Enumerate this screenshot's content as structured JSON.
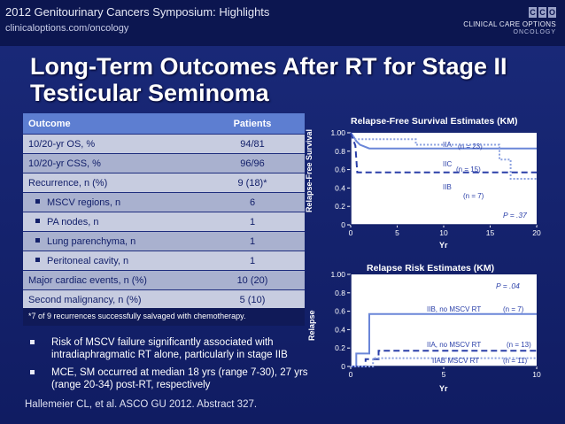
{
  "header": {
    "title": "2012 Genitourinary Cancers Symposium: Highlights",
    "subtitle": "clinicaloptions.com/oncology",
    "logo": {
      "mark": [
        "C",
        "C",
        "O"
      ],
      "main": "CLINICAL CARE OPTIONS",
      "sub": "ONCOLOGY"
    }
  },
  "slide": {
    "title": "Long-Term Outcomes After RT for Stage II Testicular Seminoma"
  },
  "table": {
    "headers": [
      "Outcome",
      "Patients"
    ],
    "rows": [
      {
        "outcome": "10/20-yr OS, %",
        "patients": "94/81"
      },
      {
        "outcome": "10/20-yr CSS, %",
        "patients": "96/96"
      },
      {
        "outcome": "Recurrence, n (%)",
        "patients": "9 (18)*"
      },
      {
        "outcome": "MSCV regions, n",
        "patients": "6"
      },
      {
        "outcome": "PA nodes, n",
        "patients": "1"
      },
      {
        "outcome": "Lung parenchyma, n",
        "patients": "1"
      },
      {
        "outcome": "Peritoneal cavity, n",
        "patients": "1"
      },
      {
        "outcome": "Major cardiac events, n (%)",
        "patients": "10 (20)"
      },
      {
        "outcome": "Second malignancy, n (%)",
        "patients": "5 (10)"
      }
    ],
    "footnote": "*7 of 9 recurrences successfully salvaged with chemotherapy."
  },
  "bullets": [
    "Risk of MSCV failure significantly associated with intradiaphragmatic RT alone, particularly in stage IIB",
    "MCE, SM occurred at median 18 yrs (range 7-30), 27 yrs (range 20-34) post-RT, respectively"
  ],
  "citation": "Hallemeier CL, et al. ASCO GU 2012. Abstract 327.",
  "colors": {
    "background": "#13206a",
    "table_header": "#5d7ed1",
    "row_light": "#c7cce0",
    "row_dark": "#a9b1cf",
    "plot_bg": "#ffffff",
    "curve_solid": "#6a86d8",
    "curve_dashed": "#2a3fa8",
    "curve_dotted": "#8aa0e0"
  },
  "chart_data": [
    {
      "type": "line",
      "title": "Relapse-Free Survival Estimates (KM)",
      "xlabel": "Yr",
      "ylabel": "Relapse-Free Survival",
      "xlim": [
        0,
        20
      ],
      "ylim": [
        0,
        1
      ],
      "xticks": [
        "0",
        "5",
        "10",
        "15",
        "20"
      ],
      "yticks": [
        "0",
        "0.2",
        "0.4",
        "0.6",
        "0.8",
        "1.00"
      ],
      "annotation": "P = .37",
      "series": [
        {
          "name": "IIA",
          "n_label": "(n = 23)",
          "style": "solid",
          "points": [
            [
              0,
              1.0
            ],
            [
              0.3,
              0.96
            ],
            [
              0.6,
              0.91
            ],
            [
              1.0,
              0.87
            ],
            [
              2.0,
              0.83
            ],
            [
              20,
              0.83
            ]
          ]
        },
        {
          "name": "IIC",
          "n_label": "(n = 15)",
          "style": "dotted",
          "points": [
            [
              0,
              1.0
            ],
            [
              0.5,
              0.93
            ],
            [
              7,
              0.93
            ],
            [
              7,
              0.87
            ],
            [
              16,
              0.87
            ],
            [
              16,
              0.71
            ],
            [
              17.2,
              0.71
            ],
            [
              17.2,
              0.5
            ],
            [
              20,
              0.5
            ]
          ]
        },
        {
          "name": "IIB",
          "n_label": "(n = 7)",
          "style": "dashed",
          "points": [
            [
              0,
              1.0
            ],
            [
              0.5,
              0.86
            ],
            [
              0.7,
              0.57
            ],
            [
              17.5,
              0.57
            ],
            [
              20,
              0.57
            ]
          ]
        }
      ]
    },
    {
      "type": "line",
      "title": "Relapse Risk Estimates (KM)",
      "xlabel": "Yr",
      "ylabel": "Relapse",
      "xlim": [
        0,
        10
      ],
      "ylim": [
        0,
        1
      ],
      "xticks": [
        "0",
        "5",
        "10"
      ],
      "yticks": [
        "0",
        "0.2",
        "0.4",
        "0.6",
        "0.8",
        "1.00"
      ],
      "annotation": "P = .04",
      "series": [
        {
          "name": "IIB, no MSCV RT",
          "n_label": "(n = 7)",
          "style": "solid",
          "points": [
            [
              0,
              0
            ],
            [
              0.3,
              0
            ],
            [
              0.3,
              0.14
            ],
            [
              1.0,
              0.14
            ],
            [
              1.0,
              0.57
            ],
            [
              10,
              0.57
            ]
          ]
        },
        {
          "name": "IIA, no MSCV RT",
          "n_label": "(n = 13)",
          "style": "dashed",
          "points": [
            [
              0,
              0
            ],
            [
              0.8,
              0
            ],
            [
              0.8,
              0.08
            ],
            [
              1.5,
              0.08
            ],
            [
              1.5,
              0.17
            ],
            [
              10,
              0.17
            ]
          ]
        },
        {
          "name": "IIAB MSCV RT",
          "n_label": "(n = 11)",
          "style": "dotted",
          "points": [
            [
              0,
              0
            ],
            [
              1.2,
              0
            ],
            [
              1.2,
              0.09
            ],
            [
              10,
              0.09
            ]
          ]
        }
      ]
    }
  ]
}
